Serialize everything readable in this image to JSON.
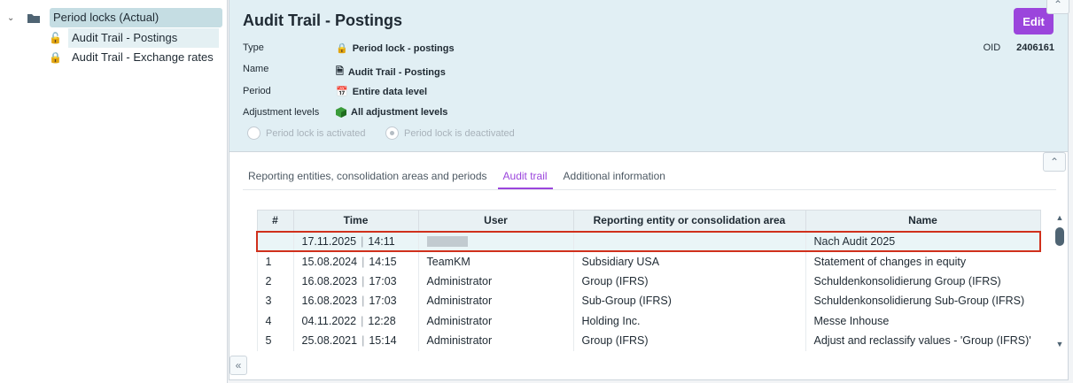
{
  "tree": {
    "root": "Period locks (Actual)",
    "items": [
      "Audit Trail - Postings",
      "Audit Trail - Exchange rates"
    ]
  },
  "header": {
    "title": "Audit Trail - Postings",
    "edit": "Edit",
    "oid_label": "OID",
    "oid": "2406161",
    "props": [
      {
        "label": "Type",
        "value": "Period lock - postings",
        "icon": "lock-icon"
      },
      {
        "label": "Name",
        "value": "Audit Trail - Postings",
        "icon": "document-icon"
      },
      {
        "label": "Period",
        "value": "Entire data level",
        "icon": "calendar-icon"
      },
      {
        "label": "Adjustment levels",
        "value": "All adjustment levels",
        "icon": "cube-icon"
      }
    ],
    "radio": {
      "activated": "Period lock is activated",
      "deactivated": "Period lock is deactivated",
      "selected": "deactivated"
    }
  },
  "tabs": [
    "Reporting entities, consolidation areas and periods",
    "Audit trail",
    "Additional information"
  ],
  "active_tab": "Audit trail",
  "table": {
    "columns": [
      "#",
      "Time",
      "User",
      "Reporting entity or consolidation area",
      "Name"
    ],
    "rows": [
      {
        "n": "",
        "date": "17.11.2025",
        "time": "14:11",
        "user": "",
        "entity": "",
        "name": "Nach Audit 2025"
      },
      {
        "n": "1",
        "date": "15.08.2024",
        "time": "14:15",
        "user": "TeamKM",
        "entity": "Subsidiary USA",
        "name": "Statement of changes in equity"
      },
      {
        "n": "2",
        "date": "16.08.2023",
        "time": "17:03",
        "user": "Administrator",
        "entity": "Group (IFRS)",
        "name": "Schuldenkonsolidierung Group (IFRS)"
      },
      {
        "n": "3",
        "date": "16.08.2023",
        "time": "17:03",
        "user": "Administrator",
        "entity": "Sub-Group (IFRS)",
        "name": "Schuldenkonsolidierung Sub-Group (IFRS)"
      },
      {
        "n": "4",
        "date": "04.11.2022",
        "time": "12:28",
        "user": "Administrator",
        "entity": "Holding Inc.",
        "name": "Messe Inhouse"
      },
      {
        "n": "5",
        "date": "25.08.2021",
        "time": "15:14",
        "user": "Administrator",
        "entity": "Group (IFRS)",
        "name": "Adjust and reclassify values - 'Group (IFRS)'"
      }
    ]
  },
  "colors": {
    "accent": "#9b45dc",
    "highlight": "#d0301c",
    "header_bg": "#e1eff4"
  }
}
